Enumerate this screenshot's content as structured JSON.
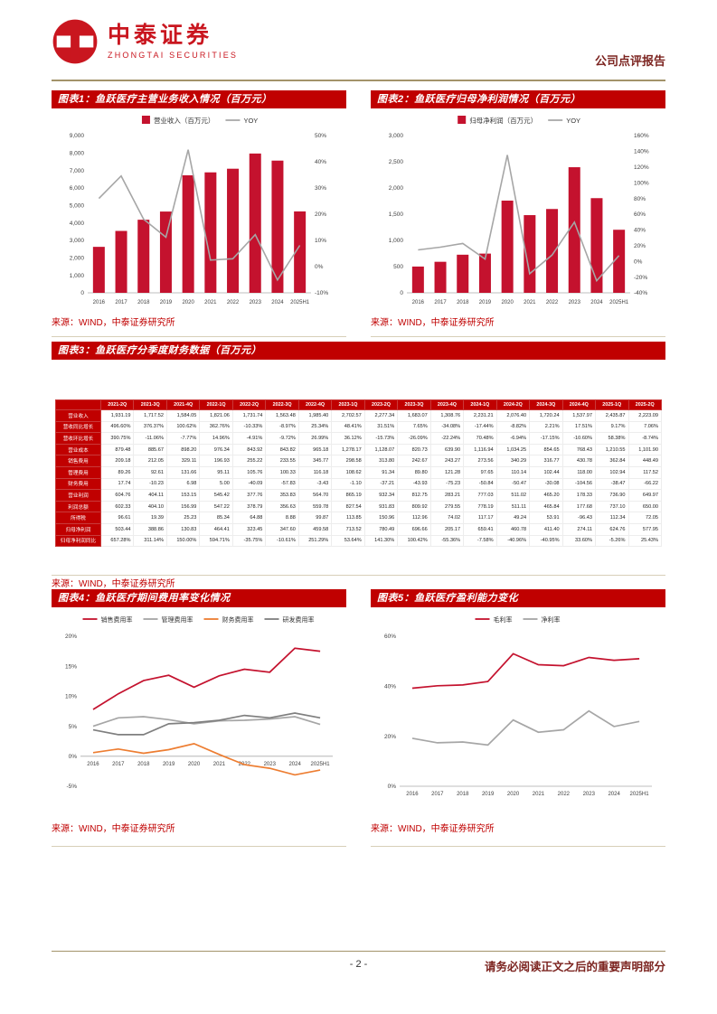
{
  "page": {
    "header": {
      "brand_cn": "中泰证券",
      "brand_en": "ZHONGTAI SECURITIES",
      "report_type": "公司点评报告"
    },
    "footer": {
      "page_number": "- 2 -",
      "disclaimer": "请务必阅读正文之后的重要声明部分"
    }
  },
  "figures": {
    "fig1": {
      "title": "图表1：鱼跃医疗主营业务收入情况（百万元）",
      "source": "来源：WIND，中泰证券研究所"
    },
    "fig2": {
      "title": "图表2：鱼跃医疗归母净利润情况（百万元）",
      "source": "来源：WIND，中泰证券研究所"
    },
    "fig3": {
      "title": "图表3：鱼跃医疗分季度财务数据（百万元）",
      "source": "来源：WIND，中泰证券研究所"
    },
    "fig4": {
      "title": "图表4：鱼跃医疗期间费用率变化情况",
      "source": "来源：WIND，中泰证券研究所"
    },
    "fig5": {
      "title": "图表5：鱼跃医疗盈利能力变化",
      "source": "来源：WIND，中泰证券研究所"
    }
  },
  "chart_data": [
    {
      "type": "bar+line",
      "title": "鱼跃医疗主营业务收入情况（百万元）",
      "categories": [
        "2016",
        "2017",
        "2018",
        "2019",
        "2020",
        "2021",
        "2022",
        "2023",
        "2024",
        "2025H1"
      ],
      "bar_series": {
        "name": "营业收入（百万元）",
        "color": "#c4122e",
        "values": [
          2631,
          3542,
          4183,
          4651,
          6726,
          6894,
          7102,
          7972,
          7566,
          4659
        ]
      },
      "line_series": {
        "name": "YOY",
        "color": "#a6a6a6",
        "values": [
          26.0,
          34.6,
          18.1,
          11.2,
          44.6,
          2.5,
          3.0,
          12.2,
          -5.1,
          8.1
        ]
      },
      "left_axis": {
        "min": 0,
        "max": 9000,
        "ticks": [
          "9,000",
          "8,000",
          "7,000",
          "6,000",
          "5,000",
          "4,000",
          "3,000",
          "2,000",
          "1,000",
          "0"
        ]
      },
      "right_axis": {
        "min": -10,
        "max": 50,
        "ticks": [
          "50%",
          "40%",
          "30%",
          "20%",
          "10%",
          "0%",
          "-10%"
        ]
      }
    },
    {
      "type": "bar+line",
      "title": "鱼跃医疗归母净利润情况（百万元）",
      "categories": [
        "2016",
        "2017",
        "2018",
        "2019",
        "2020",
        "2021",
        "2022",
        "2023",
        "2024",
        "2025H1"
      ],
      "bar_series": {
        "name": "归母净利润（百万元）",
        "color": "#c4122e",
        "values": [
          501,
          592,
          727,
          748,
          1759,
          1482,
          1599,
          2396,
          1806,
          1203
        ]
      },
      "line_series": {
        "name": "YOY",
        "color": "#a6a6a6",
        "values": [
          14.6,
          18.0,
          22.8,
          2.9,
          135.3,
          -15.7,
          7.9,
          49.9,
          -24.6,
          7.3
        ]
      },
      "left_axis": {
        "min": 0,
        "max": 3000,
        "ticks": [
          "3,000",
          "2,500",
          "2,000",
          "1,500",
          "1,000",
          "500",
          "0"
        ]
      },
      "right_axis": {
        "min": -40,
        "max": 160,
        "ticks": [
          "160%",
          "140%",
          "120%",
          "100%",
          "80%",
          "60%",
          "40%",
          "20%",
          "0%",
          "-20%",
          "-40%"
        ]
      }
    },
    {
      "type": "line",
      "title": "鱼跃医疗期间费用率变化情况",
      "categories": [
        "2016",
        "2017",
        "2018",
        "2019",
        "2020",
        "2021",
        "2022",
        "2023",
        "2024",
        "2025H1"
      ],
      "series": [
        {
          "name": "销售费用率",
          "color": "#c4122e",
          "values": [
            7.8,
            10.4,
            12.6,
            13.5,
            11.5,
            13.4,
            14.5,
            14.0,
            18.0,
            17.5
          ]
        },
        {
          "name": "管理费用率",
          "color": "#a6a6a6",
          "values": [
            5.0,
            6.4,
            6.6,
            6.1,
            5.4,
            5.9,
            6.0,
            6.2,
            6.6,
            5.3
          ]
        },
        {
          "name": "财务费用率",
          "color": "#ed7d31",
          "values": [
            0.6,
            1.2,
            0.5,
            1.1,
            2.1,
            0.3,
            -1.4,
            -2.0,
            -3.1,
            -2.3
          ]
        },
        {
          "name": "研发费用率",
          "color": "#7f7f7f",
          "values": [
            4.4,
            3.6,
            3.6,
            5.4,
            5.6,
            6.0,
            6.8,
            6.4,
            7.2,
            6.4
          ]
        }
      ],
      "y_axis": {
        "min": -5,
        "max": 20,
        "ticks": [
          "20%",
          "15%",
          "10%",
          "5%",
          "0%",
          "-5%"
        ]
      }
    },
    {
      "type": "line",
      "title": "鱼跃医疗盈利能力变化",
      "categories": [
        "2016",
        "2017",
        "2018",
        "2019",
        "2020",
        "2021",
        "2022",
        "2023",
        "2024",
        "2025H1"
      ],
      "series": [
        {
          "name": "毛利率",
          "color": "#c4122e",
          "values": [
            39.2,
            40.2,
            40.5,
            41.9,
            53.0,
            48.6,
            48.2,
            51.5,
            50.4,
            51.0
          ]
        },
        {
          "name": "净利率",
          "color": "#a6a6a6",
          "values": [
            19.2,
            17.4,
            17.7,
            16.5,
            26.5,
            21.6,
            22.6,
            30.1,
            23.9,
            25.9
          ]
        }
      ],
      "y_axis": {
        "min": 0,
        "max": 60,
        "ticks": [
          "60%",
          "40%",
          "20%",
          "0%"
        ]
      }
    }
  ],
  "table": {
    "columns": [
      "2021-2Q",
      "2021-3Q",
      "2021-4Q",
      "2022-1Q",
      "2022-2Q",
      "2022-3Q",
      "2022-4Q",
      "2023-1Q",
      "2023-2Q",
      "2023-3Q",
      "2023-4Q",
      "2024-1Q",
      "2024-2Q",
      "2024-3Q",
      "2024-4Q",
      "2025-1Q",
      "2025-2Q"
    ],
    "rows": [
      {
        "label": "营业收入",
        "values": [
          "1,931.19",
          "1,717.52",
          "1,584.05",
          "1,821.06",
          "1,731.74",
          "1,563.48",
          "1,985.40",
          "2,702.57",
          "2,277.34",
          "1,683.07",
          "1,308.76",
          "2,231.21",
          "2,076.40",
          "1,720.24",
          "1,537.97",
          "2,435.87",
          "2,223.09"
        ]
      },
      {
        "label": "营收同比增长",
        "values": [
          "496.60%",
          "376.37%",
          "100.62%",
          "362.76%",
          "-10.33%",
          "-8.97%",
          "25.34%",
          "48.41%",
          "31.51%",
          "7.65%",
          "-34.08%",
          "-17.44%",
          "-8.82%",
          "2.21%",
          "17.51%",
          "9.17%",
          "7.06%"
        ]
      },
      {
        "label": "营收环比增长",
        "values": [
          "390.75%",
          "-11.06%",
          "-7.77%",
          "14.96%",
          "-4.91%",
          "-9.72%",
          "26.99%",
          "36.12%",
          "-15.73%",
          "-26.09%",
          "-22.24%",
          "70.48%",
          "-6.94%",
          "-17.15%",
          "-10.60%",
          "58.38%",
          "-8.74%"
        ]
      },
      {
        "label": "营业成本",
        "values": [
          "879.48",
          "885.67",
          "898.20",
          "976.34",
          "843.92",
          "843.82",
          "965.18",
          "1,278.17",
          "1,128.07",
          "820.73",
          "639.90",
          "1,116.94",
          "1,034.25",
          "854.65",
          "768.43",
          "1,210.55",
          "1,101.90"
        ]
      },
      {
        "label": "销售费用",
        "values": [
          "209.18",
          "212.05",
          "329.11",
          "196.93",
          "255.22",
          "233.55",
          "345.77",
          "298.58",
          "313.80",
          "242.67",
          "243.27",
          "273.56",
          "340.29",
          "316.77",
          "430.78",
          "362.84",
          "448.49"
        ]
      },
      {
        "label": "管理费用",
        "values": [
          "89.26",
          "92.61",
          "131.66",
          "95.11",
          "105.76",
          "100.33",
          "116.18",
          "108.62",
          "91.34",
          "89.80",
          "121.28",
          "97.65",
          "110.14",
          "102.44",
          "118.00",
          "102.94",
          "117.52"
        ]
      },
      {
        "label": "财务费用",
        "values": [
          "17.74",
          "-10.23",
          "6.98",
          "5.00",
          "-40.09",
          "-57.83",
          "-3.43",
          "-1.10",
          "-37.21",
          "-43.93",
          "-75.23",
          "-50.84",
          "-50.47",
          "-30.08",
          "-104.56",
          "-38.47",
          "-66.22"
        ]
      },
      {
        "label": "营业利润",
        "values": [
          "604.76",
          "404.11",
          "153.15",
          "545.42",
          "377.76",
          "353.83",
          "564.70",
          "865.19",
          "932.34",
          "812.75",
          "283.21",
          "777.03",
          "511.02",
          "465.20",
          "178.33",
          "736.90",
          "649.97"
        ]
      },
      {
        "label": "利润总额",
        "values": [
          "602.33",
          "404.10",
          "156.99",
          "547.22",
          "378.79",
          "356.63",
          "559.78",
          "827.54",
          "931.83",
          "809.92",
          "279.55",
          "778.19",
          "511.11",
          "465.84",
          "177.68",
          "737.10",
          "650.00"
        ]
      },
      {
        "label": "所得税",
        "values": [
          "96.61",
          "19.39",
          "25.23",
          "85.34",
          "64.88",
          "8.88",
          "99.87",
          "113.85",
          "150.96",
          "112.96",
          "74.02",
          "117.17",
          "49.24",
          "53.91",
          "-96.43",
          "112.34",
          "72.05"
        ]
      },
      {
        "label": "归母净利润",
        "values": [
          "503.44",
          "388.86",
          "130.83",
          "464.41",
          "323.45",
          "347.60",
          "459.58",
          "713.52",
          "780.49",
          "696.66",
          "205.17",
          "659.41",
          "460.78",
          "411.40",
          "274.11",
          "624.76",
          "577.95"
        ]
      },
      {
        "label": "归母净利润同比",
        "values": [
          "657.28%",
          "311.14%",
          "150.00%",
          "594.71%",
          "-35.75%",
          "-10.61%",
          "251.29%",
          "53.64%",
          "141.30%",
          "100.42%",
          "-55.36%",
          "-7.58%",
          "-40.96%",
          "-40.95%",
          "33.60%",
          "-5.26%",
          "25.43%"
        ]
      }
    ]
  }
}
